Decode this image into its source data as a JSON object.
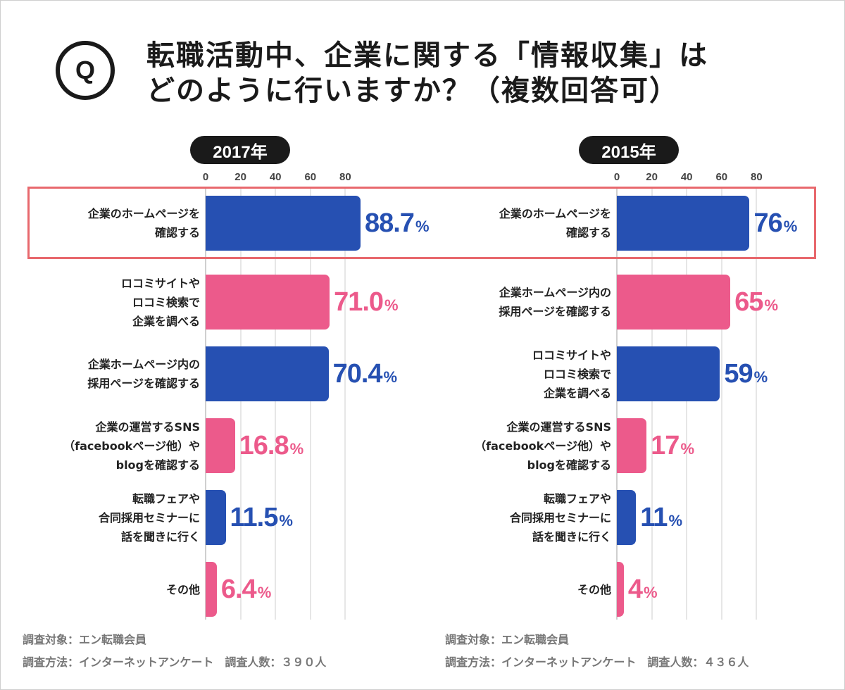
{
  "question": {
    "q_mark": "Q",
    "title_line1": "転職活動中、企業に関する「情報収集」は",
    "title_line2": "どのように行いますか？（複数回答可）"
  },
  "highlight_label": "企業のホームページを確認する",
  "colors": {
    "blue": "#2650b2",
    "pink": "#ec5a8b",
    "highlight": "#e8686d",
    "pill": "#1a1a1a"
  },
  "chart_data": [
    {
      "type": "bar",
      "orientation": "horizontal",
      "title": "2017年",
      "ticks": [
        "0",
        "20",
        "40",
        "60",
        "80"
      ],
      "xlim": [
        0,
        100
      ],
      "unit": "%",
      "categories": [
        [
          "企業のホームページを",
          "確認する"
        ],
        [
          "ロコミサイトや",
          "ロコミ検索で",
          "企業を調べる"
        ],
        [
          "企業ホームページ内の",
          "採用ページを確認する"
        ],
        [
          "企業の運営するSNS",
          "（facebookページ他）や",
          "blogを確認する"
        ],
        [
          "転職フェアや",
          "合同採用セミナーに",
          "話を聞きに行く"
        ],
        [
          "その他"
        ]
      ],
      "values": [
        88.7,
        71.0,
        70.4,
        16.8,
        11.5,
        6.4
      ],
      "value_labels": [
        "88.7",
        "71.0",
        "70.4",
        "16.8",
        "11.5",
        "6.4"
      ],
      "bar_colors": [
        "blue",
        "pink",
        "blue",
        "pink",
        "blue",
        "pink"
      ]
    },
    {
      "type": "bar",
      "orientation": "horizontal",
      "title": "2015年",
      "ticks": [
        "0",
        "20",
        "40",
        "60",
        "80"
      ],
      "xlim": [
        0,
        100
      ],
      "unit": "%",
      "categories": [
        [
          "企業のホームページを",
          "確認する"
        ],
        [
          "企業ホームページ内の",
          "採用ページを確認する"
        ],
        [
          "ロコミサイトや",
          "ロコミ検索で",
          "企業を調べる"
        ],
        [
          "企業の運営するSNS",
          "（facebookページ他）や",
          "blogを確認する"
        ],
        [
          "転職フェアや",
          "合同採用セミナーに",
          "話を聞きに行く"
        ],
        [
          "その他"
        ]
      ],
      "values": [
        76,
        65,
        59,
        17,
        11,
        4
      ],
      "value_labels": [
        "76",
        "65",
        "59",
        "17",
        "11",
        "4"
      ],
      "bar_colors": [
        "blue",
        "pink",
        "blue",
        "pink",
        "blue",
        "pink"
      ]
    }
  ],
  "footnotes": [
    {
      "target": "調査対象：エン転職会員",
      "method": "調査方法：インターネットアンケート　調査人数：３９０人"
    },
    {
      "target": "調査対象：エン転職会員",
      "method": "調査方法：インターネットアンケート　調査人数：４３６人"
    }
  ]
}
